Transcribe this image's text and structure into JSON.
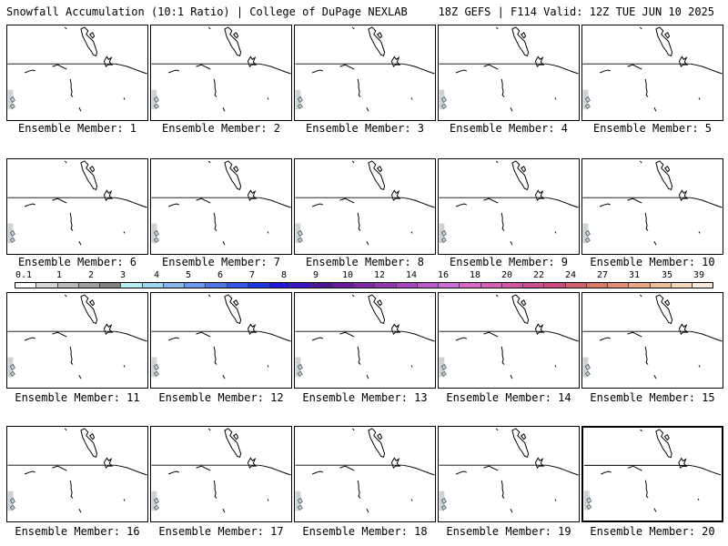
{
  "header": {
    "title_left": "Snowfall Accumulation (10:1 Ratio) | College of DuPage NEXLAB",
    "title_right": "18Z GEFS | F114 Valid: 12Z TUE JUN 10 2025"
  },
  "members": [
    {
      "label": "Ensemble Member: 1"
    },
    {
      "label": "Ensemble Member: 2"
    },
    {
      "label": "Ensemble Member: 3"
    },
    {
      "label": "Ensemble Member: 4"
    },
    {
      "label": "Ensemble Member: 5"
    },
    {
      "label": "Ensemble Member: 6"
    },
    {
      "label": "Ensemble Member: 7"
    },
    {
      "label": "Ensemble Member: 8"
    },
    {
      "label": "Ensemble Member: 9"
    },
    {
      "label": "Ensemble Member: 10"
    },
    {
      "label": "Ensemble Member: 11"
    },
    {
      "label": "Ensemble Member: 12"
    },
    {
      "label": "Ensemble Member: 13"
    },
    {
      "label": "Ensemble Member: 14"
    },
    {
      "label": "Ensemble Member: 15"
    },
    {
      "label": "Ensemble Member: 16"
    },
    {
      "label": "Ensemble Member: 17"
    },
    {
      "label": "Ensemble Member: 18"
    },
    {
      "label": "Ensemble Member: 19"
    },
    {
      "label": "Ensemble Member: 20"
    }
  ],
  "colorbar": {
    "labels": [
      "0.1",
      "1",
      "2",
      "3",
      "4",
      "5",
      "6",
      "7",
      "8",
      "9",
      "10",
      "12",
      "14",
      "16",
      "18",
      "20",
      "22",
      "24",
      "27",
      "31",
      "35",
      "39"
    ],
    "colors": [
      "#ffffff",
      "#d9d9d9",
      "#bdbdbd",
      "#a0a0a0",
      "#808080",
      "#b7f0f0",
      "#9fd7f2",
      "#86b7ef",
      "#6b97ec",
      "#4f77e8",
      "#3557e4",
      "#1b37e0",
      "#1a1ad8",
      "#3a17c2",
      "#4f1596",
      "#6a1a9c",
      "#7f27a8",
      "#9436b4",
      "#a847c0",
      "#bc5acc",
      "#cf6ed6",
      "#d968c9",
      "#d85fb8",
      "#d455a6",
      "#cf4b92",
      "#cc4a80",
      "#d45f6e",
      "#dc7868",
      "#e59074",
      "#eda784",
      "#f2bf9c",
      "#f6d6b8",
      "#fbeadb"
    ]
  }
}
